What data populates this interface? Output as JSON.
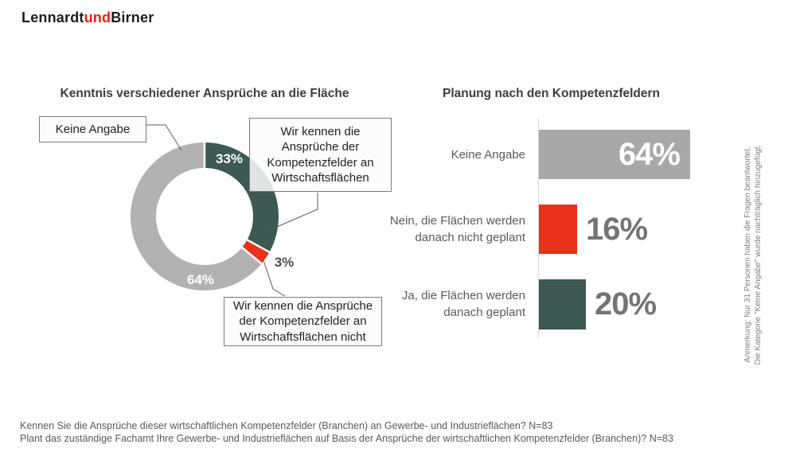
{
  "logo": {
    "part1": "Lennardt",
    "part2": "und",
    "part3": "Birner"
  },
  "colors": {
    "teal": "#3c5952",
    "red": "#e8321b",
    "donut_gray": "#b2b2b2",
    "bar_gray": "#a8a8a8",
    "value_label_gray": "#747474",
    "title_text": "#3d3d3d",
    "leader_line": "#595959"
  },
  "chart_data": [
    {
      "type": "pie",
      "subtype": "donut",
      "title": "Kenntnis verschiedener Ansprüche an die Fläche",
      "categories": [
        "Wir kennen die Ansprüche der Kompetenzfelder an Wirtschaftsflächen",
        "Wir kennen die Ansprüche der Kompetenzfelder an Wirtschaftsflächen nicht",
        "Keine Angabe"
      ],
      "values": [
        33,
        3,
        64
      ],
      "labels": [
        "33%",
        "3%",
        "64%"
      ],
      "colors": [
        "#3c5952",
        "#e8321b",
        "#b2b2b2"
      ],
      "start_angle": "12 o'clock",
      "direction": "clockwise",
      "legend_position": "callout-boxes"
    },
    {
      "type": "bar",
      "orientation": "horizontal",
      "title": "Planung nach den Kompetenzfeldern",
      "categories": [
        "Keine Angabe",
        "Nein, die Flächen werden danach nicht geplant",
        "Ja, die Flächen werden danach geplant"
      ],
      "values": [
        64,
        16,
        20
      ],
      "labels": [
        "64%",
        "16%",
        "20%"
      ],
      "colors": [
        "#a8a8a8",
        "#e8321b",
        "#3c5952"
      ],
      "xlim": [
        0,
        100
      ],
      "grid": false
    }
  ],
  "callouts": {
    "keine_angabe": "Keine Angabe",
    "top_right": "Wir kennen die\nAnsprüche der\nKompetenzfelder an\nWirtschaftsflächen",
    "bottom": "Wir kennen die Ansprüche\nder Kompetenzfelder an\nWirtschaftsflächen nicht"
  },
  "bar_chart": {
    "title": "Planung nach den Kompetenzfeldern",
    "rows": [
      {
        "label": "Keine Angabe",
        "value": 64,
        "value_label": "64%"
      },
      {
        "label": "Nein, die Flächen werden\ndanach nicht geplant",
        "value": 16,
        "value_label": "16%"
      },
      {
        "label": "Ja, die Flächen werden\ndanach geplant",
        "value": 20,
        "value_label": "20%"
      }
    ]
  },
  "annotation": {
    "line1": "Anmerkung: Nur 31 Personen haben die Fragen beantwortet.",
    "line2": "Die Kategorie \"Keine Angabe\" wurde nachträglich hinzugefügt."
  },
  "footnotes": [
    "Kennen Sie die Ansprüche dieser wirtschaftlichen Kompetenzfelder (Branchen) an Gewerbe- und Industrieflächen? N=83",
    "Plant das zuständige Fachamt Ihre Gewerbe- und Industrieflächen auf Basis der Ansprüche der wirtschaftlichen Kompetenzfelder (Branchen)? N=83"
  ]
}
